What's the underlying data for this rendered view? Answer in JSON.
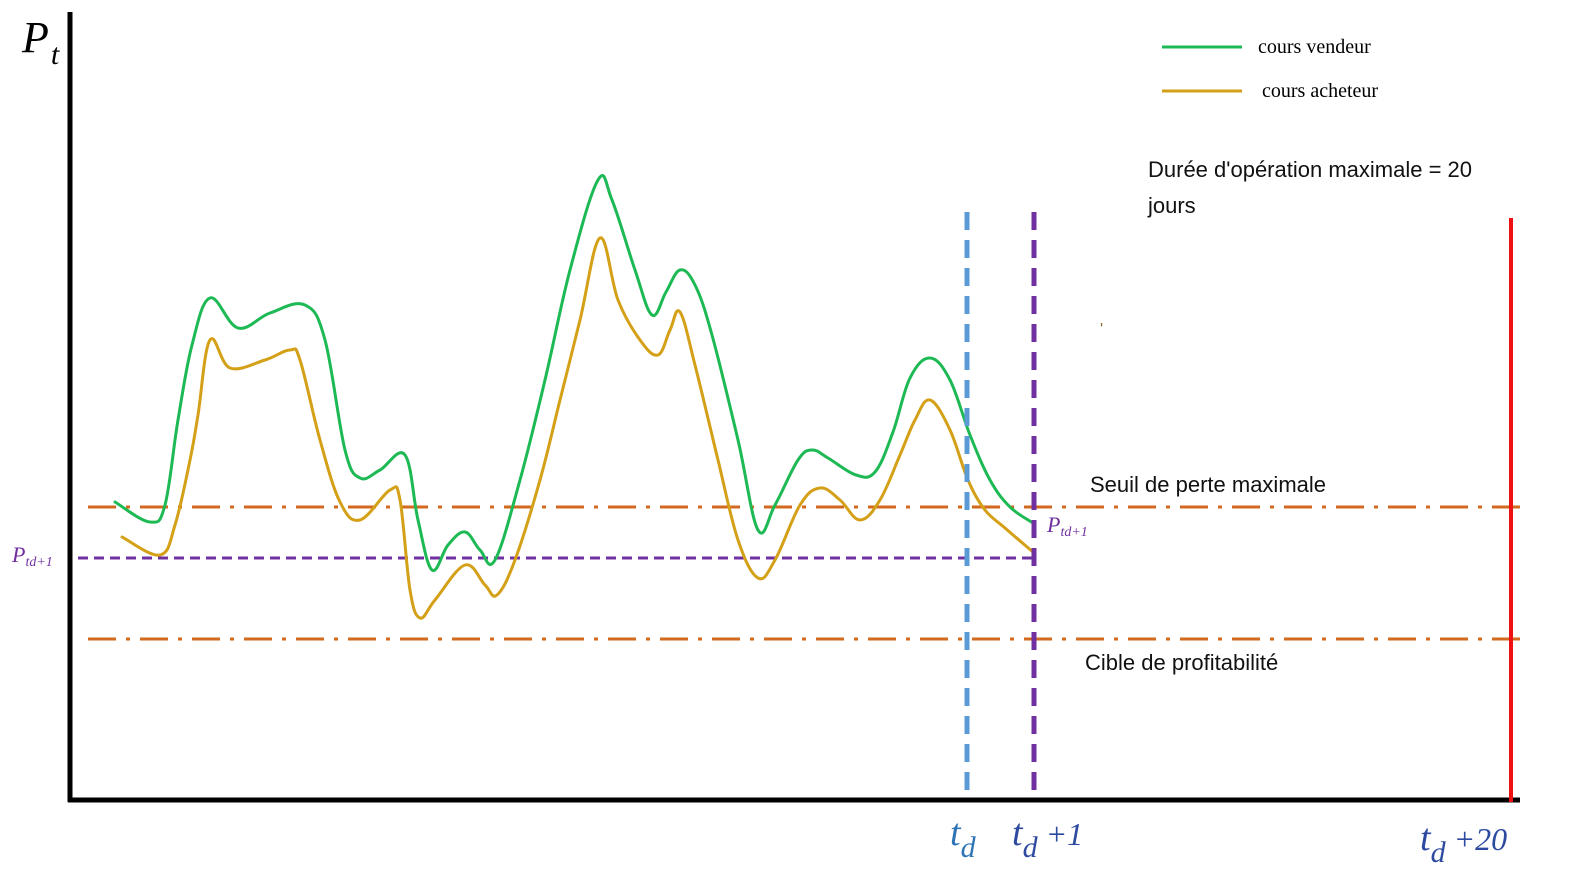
{
  "chart_data": {
    "type": "line",
    "title": "",
    "ylabel": {
      "main": "P",
      "sub": "t"
    },
    "xlabel": "",
    "grid": false,
    "legend_position": "top-right",
    "series": [
      {
        "name": "cours vendeur",
        "color": "#1db954",
        "points": [
          [
            115,
            502
          ],
          [
            150,
            522
          ],
          [
            165,
            505
          ],
          [
            178,
            420
          ],
          [
            192,
            345
          ],
          [
            210,
            298
          ],
          [
            238,
            328
          ],
          [
            270,
            313
          ],
          [
            305,
            305
          ],
          [
            325,
            340
          ],
          [
            345,
            450
          ],
          [
            360,
            478
          ],
          [
            380,
            470
          ],
          [
            405,
            455
          ],
          [
            418,
            520
          ],
          [
            432,
            570
          ],
          [
            448,
            545
          ],
          [
            465,
            532
          ],
          [
            480,
            550
          ],
          [
            495,
            560
          ],
          [
            520,
            480
          ],
          [
            545,
            380
          ],
          [
            570,
            270
          ],
          [
            598,
            180
          ],
          [
            612,
            200
          ],
          [
            635,
            270
          ],
          [
            652,
            315
          ],
          [
            666,
            292
          ],
          [
            680,
            270
          ],
          [
            695,
            285
          ],
          [
            712,
            335
          ],
          [
            738,
            440
          ],
          [
            758,
            530
          ],
          [
            775,
            505
          ],
          [
            798,
            460
          ],
          [
            812,
            450
          ],
          [
            828,
            458
          ],
          [
            856,
            475
          ],
          [
            875,
            472
          ],
          [
            893,
            432
          ],
          [
            910,
            378
          ],
          [
            930,
            358
          ],
          [
            950,
            380
          ],
          [
            970,
            435
          ],
          [
            990,
            480
          ],
          [
            1010,
            507
          ],
          [
            1033,
            523
          ]
        ]
      },
      {
        "name": "cours acheteur",
        "color": "#d4a017",
        "points": [
          [
            122,
            537
          ],
          [
            160,
            555
          ],
          [
            175,
            525
          ],
          [
            190,
            460
          ],
          [
            198,
            415
          ],
          [
            210,
            340
          ],
          [
            230,
            368
          ],
          [
            265,
            360
          ],
          [
            290,
            350
          ],
          [
            300,
            360
          ],
          [
            320,
            440
          ],
          [
            340,
            502
          ],
          [
            360,
            520
          ],
          [
            390,
            490
          ],
          [
            400,
            500
          ],
          [
            410,
            590
          ],
          [
            420,
            618
          ],
          [
            435,
            600
          ],
          [
            465,
            565
          ],
          [
            485,
            585
          ],
          [
            497,
            595
          ],
          [
            515,
            560
          ],
          [
            540,
            480
          ],
          [
            560,
            400
          ],
          [
            580,
            320
          ],
          [
            600,
            238
          ],
          [
            618,
            300
          ],
          [
            640,
            340
          ],
          [
            658,
            355
          ],
          [
            670,
            330
          ],
          [
            680,
            312
          ],
          [
            695,
            365
          ],
          [
            718,
            460
          ],
          [
            738,
            540
          ],
          [
            758,
            578
          ],
          [
            775,
            560
          ],
          [
            800,
            505
          ],
          [
            820,
            488
          ],
          [
            840,
            500
          ],
          [
            860,
            520
          ],
          [
            880,
            500
          ],
          [
            900,
            455
          ],
          [
            915,
            420
          ],
          [
            930,
            400
          ],
          [
            950,
            430
          ],
          [
            968,
            480
          ],
          [
            985,
            510
          ],
          [
            1005,
            528
          ],
          [
            1033,
            552
          ]
        ]
      }
    ],
    "reference_lines": {
      "seuil": {
        "label": "Seuil de perte maximale",
        "color": "#d2691e"
      },
      "cible": {
        "label": "Cible de profitabilité",
        "color": "#d2691e"
      },
      "ptd": {
        "label_main": "P",
        "label_sub": "td+1",
        "color": "#7030a0"
      }
    },
    "vertical_markers": [
      {
        "main": "t",
        "sub": "d",
        "suffix": "",
        "color": "#5b9bd5",
        "label_color": "#2e75b6"
      },
      {
        "main": "t",
        "sub": "d",
        "suffix": " +1",
        "color": "#7030a0",
        "label_color": "#2e4aa0"
      },
      {
        "main": "t",
        "sub": "d",
        "suffix": " +20",
        "color": "#ee1111",
        "label_color": "#2e4aa0"
      }
    ],
    "annotation_duration": [
      "Durée d'opération maximale = 20",
      "jours"
    ],
    "dot_text": "'"
  }
}
